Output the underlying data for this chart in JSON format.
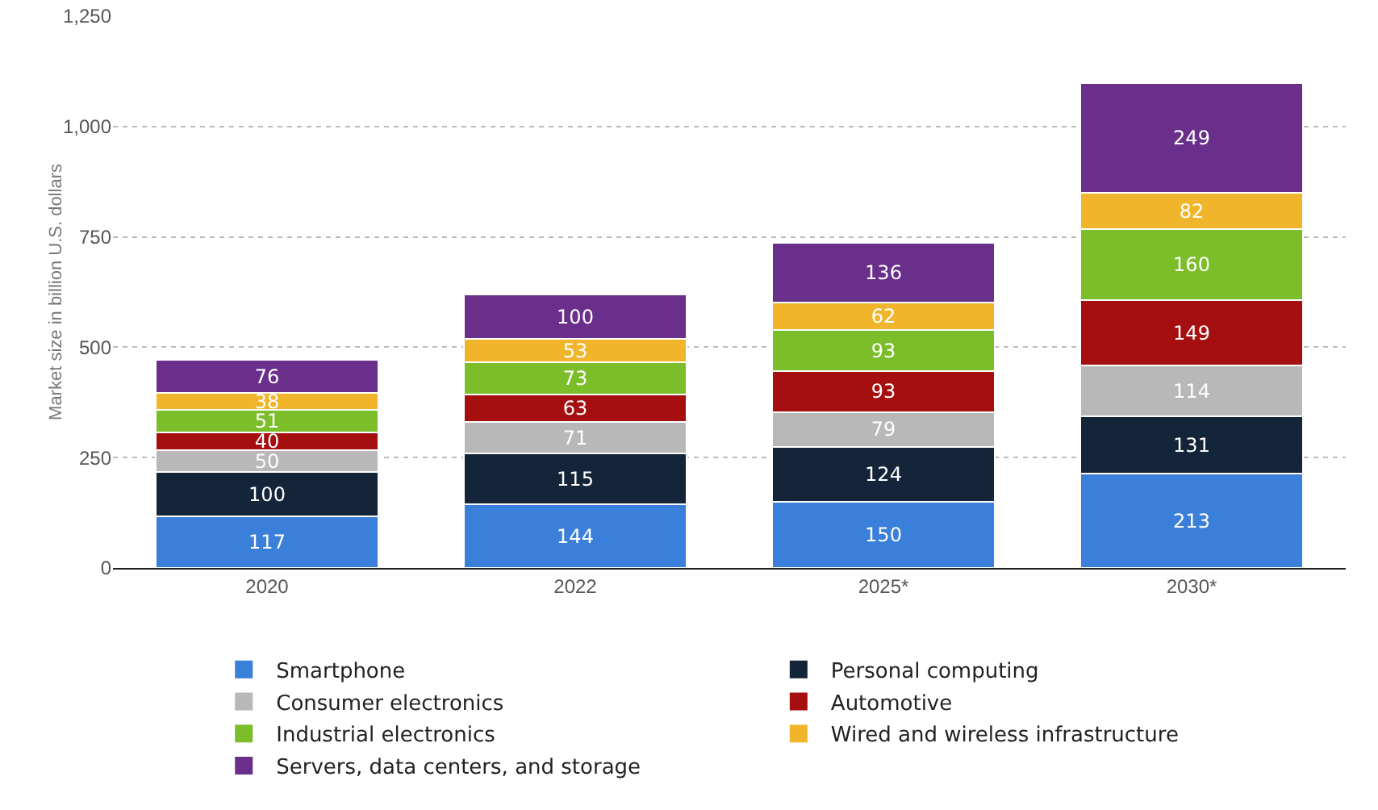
{
  "chart_data": {
    "type": "bar",
    "stacked": true,
    "ylabel": "Market size in billion U.S. dollars",
    "categories": [
      "2020",
      "2022",
      "2025*",
      "2030*"
    ],
    "series": [
      {
        "name": "Smartphone",
        "color": "#3a7fd9",
        "values": [
          117,
          144,
          150,
          213
        ]
      },
      {
        "name": "Personal computing",
        "color": "#14253a",
        "values": [
          100,
          115,
          124,
          131
        ]
      },
      {
        "name": "Consumer electronics",
        "color": "#b8b8b8",
        "values": [
          50,
          71,
          79,
          114
        ]
      },
      {
        "name": "Automotive",
        "color": "#a50f10",
        "values": [
          40,
          63,
          93,
          149
        ]
      },
      {
        "name": "Industrial electronics",
        "color": "#7cbd2a",
        "values": [
          51,
          73,
          93,
          160
        ]
      },
      {
        "name": "Wired and wireless infrastructure",
        "color": "#f0b52a",
        "values": [
          38,
          53,
          62,
          82
        ]
      },
      {
        "name": "Servers, data centers, and storage",
        "color": "#6a2f8a",
        "values": [
          76,
          100,
          136,
          249
        ]
      }
    ],
    "ylim": [
      0,
      1250
    ],
    "yticks": [
      0,
      {
        "value": 250,
        "label": "250"
      },
      {
        "value": 500,
        "label": "500"
      },
      {
        "value": 750,
        "label": "750"
      },
      {
        "value": 1000,
        "label": "1,000"
      },
      {
        "value": 1250,
        "label": "1,250"
      }
    ],
    "grid": "y",
    "legend": "bottom",
    "data_labels": true
  }
}
